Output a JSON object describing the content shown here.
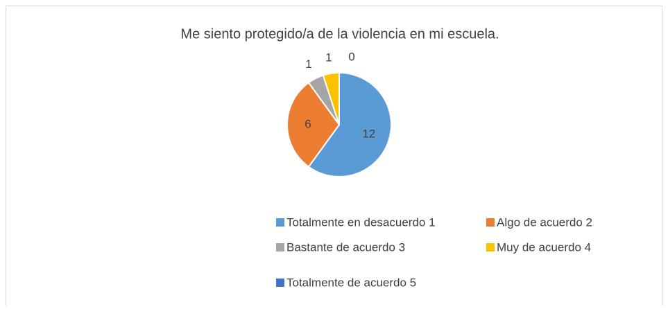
{
  "chart_data": {
    "type": "pie",
    "title": "Me siento protegido/a de la violencia en mi escuela.",
    "categories": [
      "Totalmente en desacuerdo 1",
      "Algo de acuerdo 2",
      "Bastante de acuerdo 3",
      "Muy de acuerdo 4",
      "Totalmente de acuerdo 5"
    ],
    "values": [
      12,
      6,
      1,
      1,
      0
    ],
    "colors": [
      "#5b9bd5",
      "#ed7d31",
      "#a5a5a5",
      "#ffc000",
      "#4472c4"
    ],
    "legend": "bottom"
  }
}
